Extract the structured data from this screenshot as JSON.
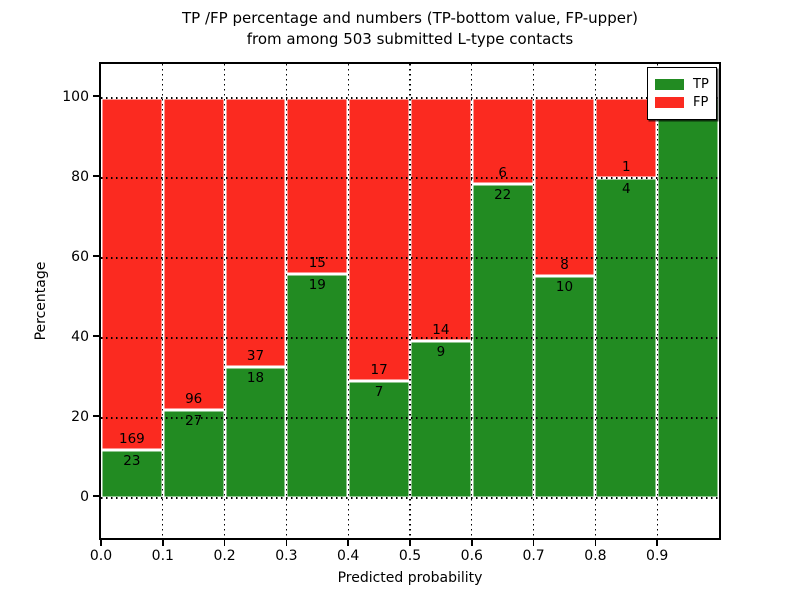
{
  "title": {
    "line1": "TP /FP percentage and numbers (TP-bottom value, FP-upper)",
    "line2": "from among 503 submitted L-type contacts"
  },
  "colors": {
    "tp": "#228b22",
    "fp": "#fb2a20",
    "grid": "#000000",
    "bar_edge": "#ffffff",
    "background": "#ffffff"
  },
  "legend": {
    "position": "upper right",
    "entries": [
      {
        "label": "TP",
        "color": "#228b22"
      },
      {
        "label": "FP",
        "color": "#fb2a20"
      }
    ]
  },
  "chart_data": {
    "type": "bar",
    "stacked": true,
    "title": "TP /FP percentage and numbers (TP-bottom value, FP-upper)\nfrom among 503 submitted L-type contacts",
    "xlabel": "Predicted probability",
    "ylabel": "Percentage",
    "xlim": [
      0.0,
      1.0
    ],
    "ylim": [
      -10,
      108.5
    ],
    "grid": "dotted, both axes, on top of bars",
    "x_ticks": [
      0.0,
      0.1,
      0.2,
      0.3,
      0.4,
      0.5,
      0.6,
      0.7,
      0.8,
      0.9
    ],
    "x_tick_labels": [
      "0.0",
      "0.1",
      "0.2",
      "0.3",
      "0.4",
      "0.5",
      "0.6",
      "0.7",
      "0.8",
      "0.9"
    ],
    "y_ticks": [
      0,
      20,
      40,
      60,
      80,
      100
    ],
    "y_tick_labels": [
      "0",
      "20",
      "40",
      "60",
      "80",
      "100"
    ],
    "total_contacts": 503,
    "series_note": "green bottom segment = TP% of bin, red upper segment = FP% of bin; numbers are raw counts (TP below boundary, FP above)",
    "bins": [
      {
        "range": [
          0.0,
          0.1
        ],
        "tp": 23,
        "fp": 169,
        "tp_pct": 11.98
      },
      {
        "range": [
          0.1,
          0.2
        ],
        "tp": 27,
        "fp": 96,
        "tp_pct": 21.95
      },
      {
        "range": [
          0.2,
          0.3
        ],
        "tp": 18,
        "fp": 37,
        "tp_pct": 32.73
      },
      {
        "range": [
          0.3,
          0.4
        ],
        "tp": 19,
        "fp": 15,
        "tp_pct": 55.88
      },
      {
        "range": [
          0.4,
          0.5
        ],
        "tp": 7,
        "fp": 17,
        "tp_pct": 29.17
      },
      {
        "range": [
          0.5,
          0.6
        ],
        "tp": 9,
        "fp": 14,
        "tp_pct": 39.13
      },
      {
        "range": [
          0.6,
          0.7
        ],
        "tp": 22,
        "fp": 6,
        "tp_pct": 78.57
      },
      {
        "range": [
          0.7,
          0.8
        ],
        "tp": 10,
        "fp": 8,
        "tp_pct": 55.56
      },
      {
        "range": [
          0.8,
          0.9
        ],
        "tp": 4,
        "fp": 1,
        "tp_pct": 80.0
      },
      {
        "range": [
          0.9,
          1.0
        ],
        "tp": 1,
        "fp": 0,
        "tp_pct": 100.0
      }
    ]
  }
}
